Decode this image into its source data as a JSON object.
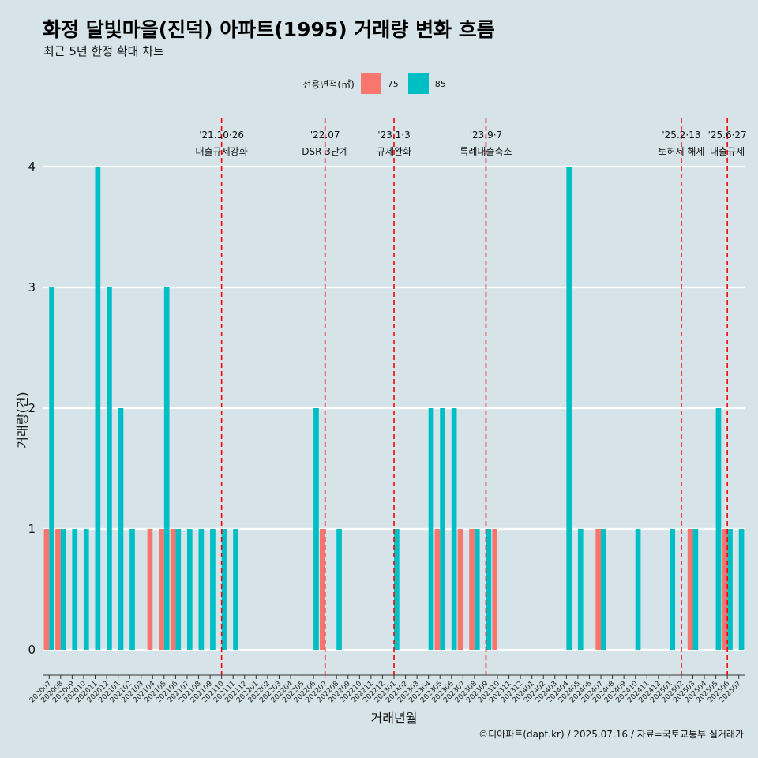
{
  "title": "화정 달빛마을(진덕) 아파트(1995) 거래량 변화 흐름",
  "subtitle": "최근 5년 한정 확대 차트",
  "legend": {
    "title": "전용면적(㎡)"
  },
  "caption": "©디아파트(dapt.kr) / 2025.07.16 / 자료=국토교통부 실거래가",
  "colors": {
    "75": "#f8766d",
    "85": "#00bfc4",
    "event_line": "#ff0000",
    "background": "#d6e4ea"
  },
  "chart_data": {
    "type": "bar",
    "xlabel": "거래년월",
    "ylabel": "거래량(건)",
    "ylim": [
      0,
      4
    ],
    "y_ticks": [
      0,
      1,
      2,
      3,
      4
    ],
    "grid": "horizontal",
    "legend_position": "top",
    "categories": [
      "202007",
      "202008",
      "202009",
      "202010",
      "202011",
      "202012",
      "202101",
      "202102",
      "202103",
      "202104",
      "202105",
      "202106",
      "202107",
      "202108",
      "202109",
      "202110",
      "202111",
      "202112",
      "202201",
      "202202",
      "202203",
      "202204",
      "202205",
      "202206",
      "202207",
      "202208",
      "202209",
      "202210",
      "202211",
      "202212",
      "202301",
      "202302",
      "202303",
      "202304",
      "202305",
      "202306",
      "202307",
      "202308",
      "202309",
      "202310",
      "202311",
      "202312",
      "202401",
      "202402",
      "202403",
      "202404",
      "202405",
      "202406",
      "202407",
      "202408",
      "202409",
      "202410",
      "202411",
      "202412",
      "202501",
      "202502",
      "202503",
      "202504",
      "202505",
      "202506",
      "202507"
    ],
    "series": [
      {
        "name": "75",
        "values": [
          1,
          1,
          0,
          0,
          0,
          0,
          0,
          0,
          0,
          1,
          1,
          1,
          0,
          0,
          0,
          0,
          0,
          0,
          0,
          0,
          0,
          0,
          0,
          0,
          1,
          0,
          0,
          0,
          0,
          0,
          0,
          0,
          0,
          0,
          1,
          0,
          1,
          1,
          0,
          1,
          0,
          0,
          0,
          0,
          0,
          0,
          0,
          0,
          1,
          0,
          0,
          0,
          0,
          0,
          0,
          0,
          1,
          0,
          0,
          1,
          0
        ]
      },
      {
        "name": "85",
        "values": [
          3,
          1,
          1,
          1,
          4,
          3,
          2,
          1,
          0,
          0,
          3,
          1,
          1,
          1,
          1,
          1,
          1,
          0,
          0,
          0,
          0,
          0,
          0,
          2,
          0,
          1,
          0,
          0,
          0,
          0,
          1,
          0,
          0,
          2,
          2,
          2,
          0,
          1,
          1,
          0,
          0,
          0,
          0,
          0,
          0,
          4,
          1,
          0,
          1,
          0,
          0,
          1,
          0,
          0,
          1,
          0,
          1,
          0,
          2,
          1,
          1
        ]
      }
    ],
    "events": [
      {
        "x": "202110",
        "date": "'21.10·26",
        "label": "대출규제강화"
      },
      {
        "x": "202207",
        "date": "'22.07",
        "label": "DSR 3단계"
      },
      {
        "x": "202301",
        "date": "'23.1·3",
        "label": "규제완화"
      },
      {
        "x": "202309",
        "date": "'23.9·7",
        "label": "특례대출축소"
      },
      {
        "x": "202502",
        "date": "'25.2·13",
        "label": "토허제 해제"
      },
      {
        "x": "202506",
        "date": "'25.6·27",
        "label": "대출규제"
      }
    ]
  }
}
